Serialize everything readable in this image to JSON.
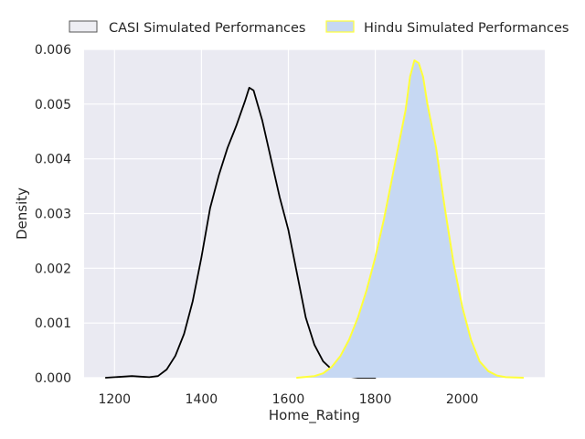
{
  "chart_data": {
    "type": "area",
    "xlabel": "Home_Rating",
    "ylabel": "Density",
    "xlim": [
      1130,
      2190
    ],
    "ylim": [
      0,
      0.006
    ],
    "x_ticks": [
      1200,
      1400,
      1600,
      1800,
      2000
    ],
    "y_ticks": [
      0,
      0.001,
      0.002,
      0.003,
      0.004,
      0.005,
      0.006
    ],
    "x_tick_labels": [
      "1200",
      "1400",
      "1600",
      "1800",
      "2000"
    ],
    "y_tick_labels": [
      "0.000",
      "0.001",
      "0.002",
      "0.003",
      "0.004",
      "0.005",
      "0.006"
    ],
    "grid": true,
    "background_color": "#EAEAF2",
    "legend_position": "top",
    "series": [
      {
        "name": "CASI Simulated Performances",
        "line_color": "#000000",
        "fill_color": "#EEEEF3",
        "points": [
          [
            1180,
            0.0
          ],
          [
            1200,
            1e-05
          ],
          [
            1220,
            2e-05
          ],
          [
            1240,
            3e-05
          ],
          [
            1260,
            2e-05
          ],
          [
            1280,
            1e-05
          ],
          [
            1300,
            3e-05
          ],
          [
            1320,
            0.00015
          ],
          [
            1340,
            0.0004
          ],
          [
            1360,
            0.0008
          ],
          [
            1380,
            0.0014
          ],
          [
            1400,
            0.0022
          ],
          [
            1420,
            0.0031
          ],
          [
            1440,
            0.0037
          ],
          [
            1460,
            0.0042
          ],
          [
            1480,
            0.0046
          ],
          [
            1500,
            0.00505
          ],
          [
            1510,
            0.0053
          ],
          [
            1520,
            0.00525
          ],
          [
            1540,
            0.0047
          ],
          [
            1560,
            0.004
          ],
          [
            1580,
            0.0033
          ],
          [
            1600,
            0.0027
          ],
          [
            1620,
            0.0019
          ],
          [
            1640,
            0.0011
          ],
          [
            1660,
            0.0006
          ],
          [
            1680,
            0.0003
          ],
          [
            1700,
            0.00015
          ],
          [
            1720,
            6e-05
          ],
          [
            1740,
            2e-05
          ],
          [
            1760,
            0.0
          ],
          [
            1800,
            0.0
          ]
        ]
      },
      {
        "name": "Hindu Simulated Performances",
        "line_color": "#FFFF3A",
        "fill_color": "#C6D8F3",
        "points": [
          [
            1620,
            0.0
          ],
          [
            1660,
            3e-05
          ],
          [
            1680,
            8e-05
          ],
          [
            1700,
            0.0002
          ],
          [
            1720,
            0.0004
          ],
          [
            1740,
            0.0007
          ],
          [
            1760,
            0.0011
          ],
          [
            1780,
            0.0016
          ],
          [
            1800,
            0.0022
          ],
          [
            1820,
            0.0029
          ],
          [
            1840,
            0.0037
          ],
          [
            1860,
            0.0045
          ],
          [
            1870,
            0.0049
          ],
          [
            1880,
            0.0055
          ],
          [
            1890,
            0.0058
          ],
          [
            1900,
            0.00575
          ],
          [
            1910,
            0.0055
          ],
          [
            1920,
            0.005
          ],
          [
            1940,
            0.0042
          ],
          [
            1960,
            0.0031
          ],
          [
            1980,
            0.0021
          ],
          [
            2000,
            0.0013
          ],
          [
            2020,
            0.0007
          ],
          [
            2040,
            0.0003
          ],
          [
            2060,
            0.00012
          ],
          [
            2080,
            4e-05
          ],
          [
            2100,
            1e-05
          ],
          [
            2140,
            0.0
          ]
        ]
      }
    ]
  }
}
